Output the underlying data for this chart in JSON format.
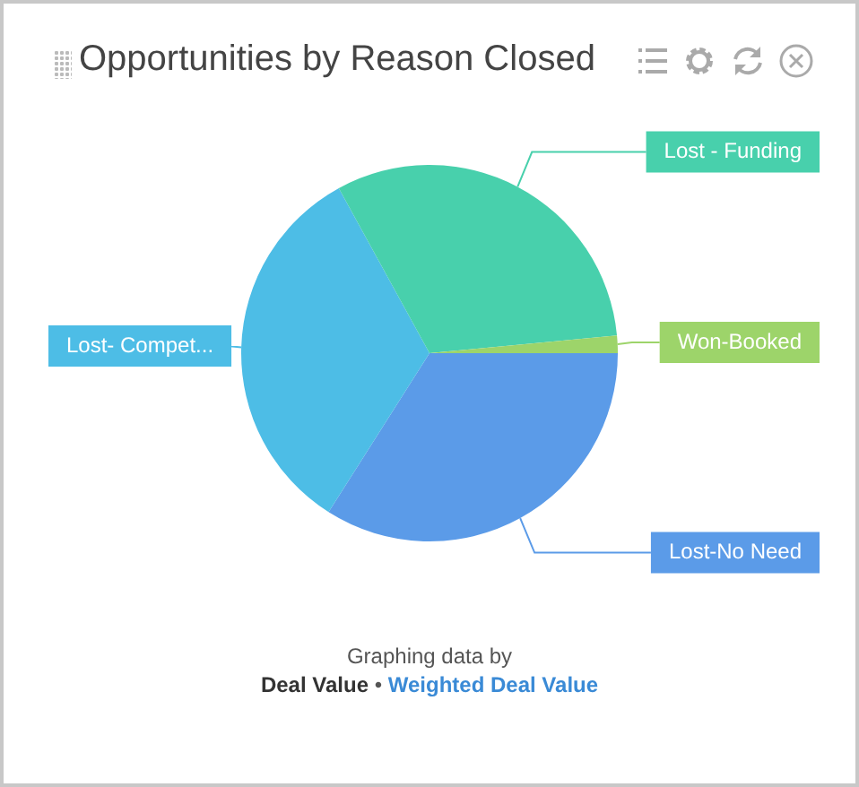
{
  "chart_data": {
    "type": "pie",
    "title": "Opportunities by Reason Closed",
    "categories": [
      "Lost-No Need",
      "Lost- Compet...",
      "Lost - Funding",
      "Won-Booked"
    ],
    "values": [
      34,
      33,
      31.5,
      1.5
    ],
    "colors": [
      "#5b9be8",
      "#4dbde6",
      "#48d0ac",
      "#9dd46a"
    ],
    "legend": false,
    "annotations": [
      "Graphing data by",
      "Deal Value",
      "•",
      "Weighted Deal Value"
    ]
  }
}
